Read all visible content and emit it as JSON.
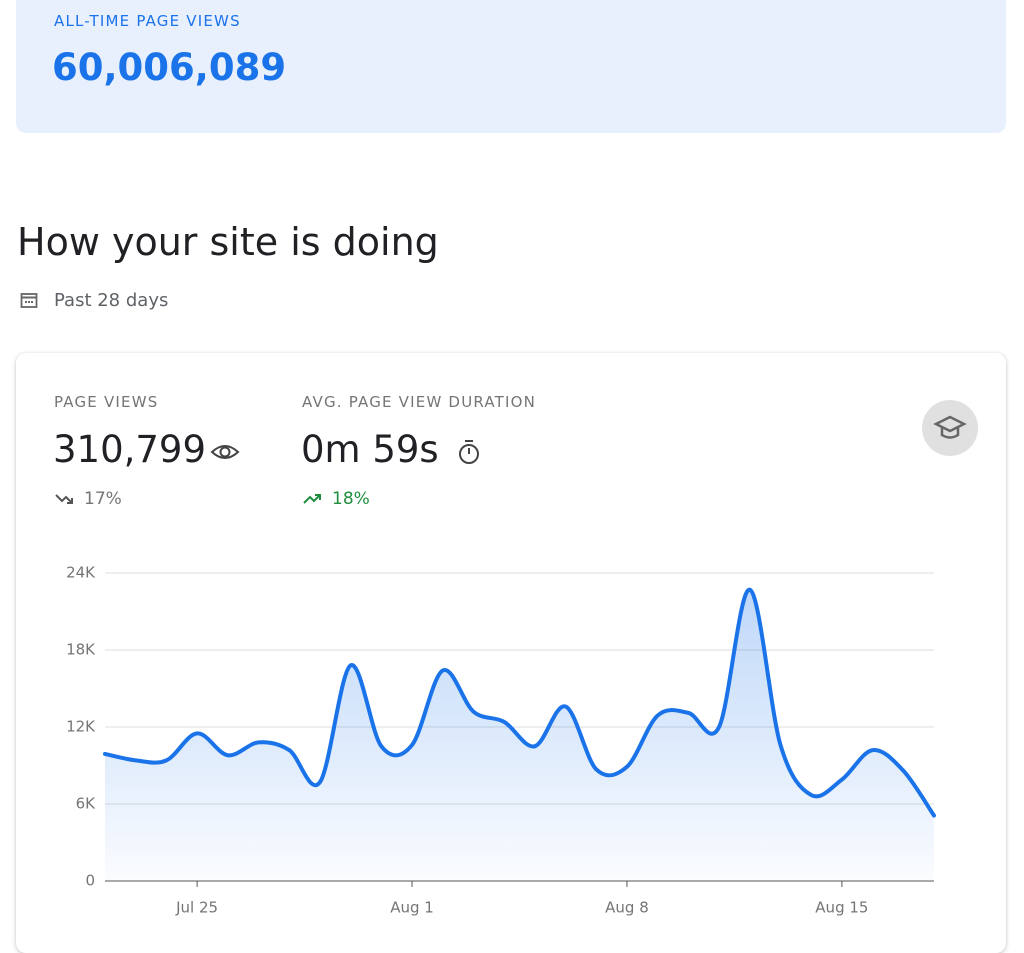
{
  "header": {
    "label": "ALL-TIME PAGE VIEWS",
    "value": "60,006,089"
  },
  "section": {
    "title": "How your site is doing",
    "period": "Past 28 days"
  },
  "metrics": [
    {
      "label": "PAGE VIEWS",
      "value": "310,799",
      "change": "17%"
    },
    {
      "label": "AVG. PAGE VIEW DURATION",
      "value": "0m 59s",
      "change": "18%"
    }
  ],
  "chart_data": {
    "type": "line",
    "categories": [
      null,
      null,
      null,
      "Jul 25",
      null,
      null,
      null,
      null,
      null,
      null,
      "Aug 1",
      null,
      null,
      null,
      null,
      null,
      null,
      "Aug 8",
      null,
      null,
      null,
      null,
      null,
      null,
      "Aug 15",
      null,
      null,
      null
    ],
    "series": [
      {
        "name": "Page views",
        "color": "#1a73e8",
        "values": [
          9900,
          9400,
          9400,
          11500,
          9800,
          10800,
          10200,
          7700,
          16800,
          10500,
          10600,
          16400,
          13200,
          12400,
          10500,
          13600,
          8700,
          8900,
          12900,
          13100,
          12000,
          22700,
          10600,
          6700,
          7900,
          10200,
          8600,
          5100
        ]
      }
    ],
    "ylim": [
      0,
      24000
    ],
    "yticks": [
      0,
      {
        "value": 6000,
        "label": "6K"
      },
      {
        "value": 12000,
        "label": "12K"
      },
      {
        "value": 18000,
        "label": "18K"
      },
      {
        "value": 24000,
        "label": "24K"
      }
    ],
    "grid": true
  }
}
